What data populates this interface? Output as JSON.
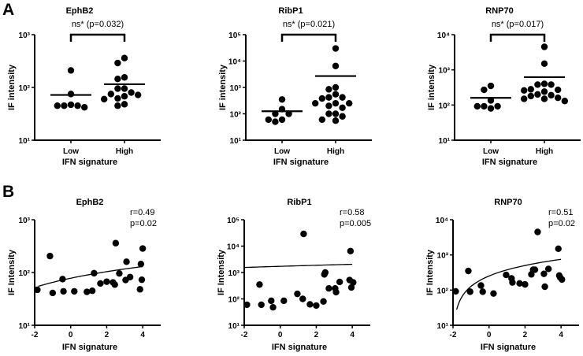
{
  "panels": {
    "a": "A",
    "b": "B"
  },
  "chart_data": [
    {
      "id": "a1",
      "type": "scatter",
      "subtype": "strip",
      "title": "EphB2",
      "annotation": "ns* (p=0.032)",
      "xlabel": "IFN signature",
      "ylabel": "IF intensity",
      "yscale": "log",
      "ylim": [
        10,
        1000
      ],
      "yticks": [
        {
          "v": 10,
          "label": "10¹"
        },
        {
          "v": 100,
          "label": "10²"
        },
        {
          "v": 1000,
          "label": "10³"
        }
      ],
      "categories": [
        "Low",
        "High"
      ],
      "groups": [
        {
          "name": "Low",
          "mean": 72,
          "values": [
            210,
            75,
            47,
            45,
            45,
            45,
            42
          ]
        },
        {
          "name": "High",
          "mean": 115,
          "values": [
            360,
            290,
            155,
            145,
            95,
            95,
            80,
            75,
            72,
            68,
            62,
            60,
            48,
            45
          ]
        }
      ]
    },
    {
      "id": "a2",
      "type": "scatter",
      "subtype": "strip",
      "title": "RibP1",
      "annotation": "ns* (p=0.021)",
      "xlabel": "IFN signature",
      "ylabel": "IF intensity",
      "yscale": "log",
      "ylim": [
        10,
        100000
      ],
      "yticks": [
        {
          "v": 10,
          "label": "10¹"
        },
        {
          "v": 100,
          "label": "10²"
        },
        {
          "v": 1000,
          "label": "10³"
        },
        {
          "v": 10000,
          "label": "10⁴"
        },
        {
          "v": 100000,
          "label": "10⁵"
        }
      ],
      "categories": [
        "Low",
        "High"
      ],
      "groups": [
        {
          "name": "Low",
          "mean": 125,
          "values": [
            350,
            150,
            100,
            100,
            60,
            60,
            50
          ]
        },
        {
          "name": "High",
          "mean": 2700,
          "values": [
            30000,
            6500,
            1000,
            850,
            550,
            420,
            420,
            380,
            250,
            250,
            250,
            200,
            170,
            100,
            100,
            80,
            60,
            55
          ]
        }
      ]
    },
    {
      "id": "a3",
      "type": "scatter",
      "subtype": "strip",
      "title": "RNP70",
      "annotation": "ns* (p=0.017)",
      "xlabel": "IFN signature",
      "ylabel": "IF intensity",
      "yscale": "log",
      "ylim": [
        10,
        10000
      ],
      "yticks": [
        {
          "v": 10,
          "label": "10¹"
        },
        {
          "v": 100,
          "label": "10²"
        },
        {
          "v": 1000,
          "label": "10³"
        },
        {
          "v": 10000,
          "label": "10⁴"
        }
      ],
      "categories": [
        "Low",
        "High"
      ],
      "groups": [
        {
          "name": "Low",
          "mean": 160,
          "values": [
            350,
            270,
            135,
            92,
            92,
            92,
            80
          ]
        },
        {
          "name": "High",
          "mean": 620,
          "values": [
            4500,
            1500,
            400,
            380,
            380,
            280,
            270,
            260,
            240,
            200,
            190,
            180,
            160,
            150,
            150,
            130
          ]
        }
      ]
    },
    {
      "id": "b1",
      "type": "scatter",
      "title": "EphB2",
      "stats": [
        "r=0.49",
        "p=0.02"
      ],
      "xlabel": "IFN signature",
      "ylabel": "IF Intensity",
      "yscale": "log",
      "ylim": [
        10,
        1000
      ],
      "xlim": [
        -2,
        5
      ],
      "xticks": [
        {
          "v": -2,
          "label": "-2"
        },
        {
          "v": 0,
          "label": "0"
        },
        {
          "v": 2,
          "label": "2"
        },
        {
          "v": 4,
          "label": "4"
        }
      ],
      "yticks": [
        {
          "v": 10,
          "label": "10¹"
        },
        {
          "v": 100,
          "label": "10²"
        },
        {
          "v": 1000,
          "label": "10³"
        }
      ],
      "fit": {
        "intercept": 78,
        "slope": 12.9,
        "x_range": [
          -1.8,
          4
        ]
      },
      "points": [
        [
          -1.85,
          47
        ],
        [
          -1.15,
          205
        ],
        [
          -1.0,
          41
        ],
        [
          -0.45,
          75
        ],
        [
          -0.4,
          44
        ],
        [
          0.2,
          44
        ],
        [
          0.9,
          43
        ],
        [
          1.2,
          45
        ],
        [
          1.3,
          97
        ],
        [
          1.65,
          62
        ],
        [
          2.0,
          67
        ],
        [
          2.35,
          65
        ],
        [
          2.45,
          59
        ],
        [
          2.5,
          360
        ],
        [
          2.7,
          96
        ],
        [
          3.05,
          72
        ],
        [
          3.1,
          160
        ],
        [
          3.3,
          82
        ],
        [
          3.85,
          48
        ],
        [
          3.9,
          145
        ],
        [
          3.95,
          73
        ],
        [
          4.0,
          285
        ]
      ]
    },
    {
      "id": "b2",
      "type": "scatter",
      "title": "RibP1",
      "stats": [
        "r=0.58",
        "p=0.005"
      ],
      "xlabel": "IFN signature",
      "ylabel": "IF Intensity",
      "yscale": "log",
      "ylim": [
        10,
        100000
      ],
      "xlim": [
        -2,
        5
      ],
      "xticks": [
        {
          "v": -2,
          "label": "-2"
        },
        {
          "v": 0,
          "label": "0"
        },
        {
          "v": 2,
          "label": "2"
        },
        {
          "v": 4,
          "label": "4"
        }
      ],
      "yticks": [
        {
          "v": 10,
          "label": "10¹"
        },
        {
          "v": 100,
          "label": "10²"
        },
        {
          "v": 1000,
          "label": "10³"
        },
        {
          "v": 10000,
          "label": "10⁴"
        },
        {
          "v": 100000,
          "label": "10⁵"
        }
      ],
      "fit": {
        "intercept": 1716,
        "slope": 83,
        "x_range": [
          -2,
          4
        ]
      },
      "points": [
        [
          -1.85,
          60
        ],
        [
          -1.15,
          350
        ],
        [
          -1.05,
          60
        ],
        [
          -0.5,
          85
        ],
        [
          -0.4,
          48
        ],
        [
          0.2,
          85
        ],
        [
          0.95,
          155
        ],
        [
          1.25,
          100
        ],
        [
          1.3,
          29000
        ],
        [
          1.65,
          62
        ],
        [
          2.0,
          56
        ],
        [
          2.4,
          80
        ],
        [
          2.45,
          850
        ],
        [
          2.5,
          1000
        ],
        [
          2.7,
          250
        ],
        [
          3.05,
          250
        ],
        [
          3.1,
          180
        ],
        [
          3.3,
          440
        ],
        [
          3.85,
          520
        ],
        [
          3.9,
          6500
        ],
        [
          3.95,
          270
        ],
        [
          4.05,
          420
        ]
      ]
    },
    {
      "id": "b3",
      "type": "scatter",
      "title": "RNP70",
      "stats": [
        "r=0.51",
        "p=0.02"
      ],
      "xlabel": "IFN signature",
      "ylabel": "IF Intensity",
      "yscale": "log",
      "ylim": [
        10,
        10000
      ],
      "xlim": [
        -2,
        5
      ],
      "xticks": [
        {
          "v": -2,
          "label": "-2"
        },
        {
          "v": 0,
          "label": "0"
        },
        {
          "v": 2,
          "label": "2"
        },
        {
          "v": 4,
          "label": "4"
        }
      ],
      "yticks": [
        {
          "v": 10,
          "label": "10¹"
        },
        {
          "v": 100,
          "label": "10²"
        },
        {
          "v": 1000,
          "label": "10³"
        },
        {
          "v": 10000,
          "label": "10⁴"
        }
      ],
      "fit": {
        "intercept": 252,
        "slope": 124.5,
        "x_range": [
          -1.8,
          4
        ]
      },
      "points": [
        [
          -1.85,
          92
        ],
        [
          -1.15,
          350
        ],
        [
          -1.05,
          90
        ],
        [
          -0.45,
          135
        ],
        [
          -0.35,
          90
        ],
        [
          0.25,
          80
        ],
        [
          0.95,
          270
        ],
        [
          1.25,
          215
        ],
        [
          1.3,
          165
        ],
        [
          1.7,
          155
        ],
        [
          2.0,
          145
        ],
        [
          2.35,
          280
        ],
        [
          2.45,
          380
        ],
        [
          2.55,
          380
        ],
        [
          2.7,
          4500
        ],
        [
          3.05,
          290
        ],
        [
          3.1,
          125
        ],
        [
          3.3,
          400
        ],
        [
          3.85,
          1500
        ],
        [
          3.9,
          260
        ],
        [
          3.95,
          230
        ],
        [
          4.05,
          200
        ]
      ]
    }
  ]
}
